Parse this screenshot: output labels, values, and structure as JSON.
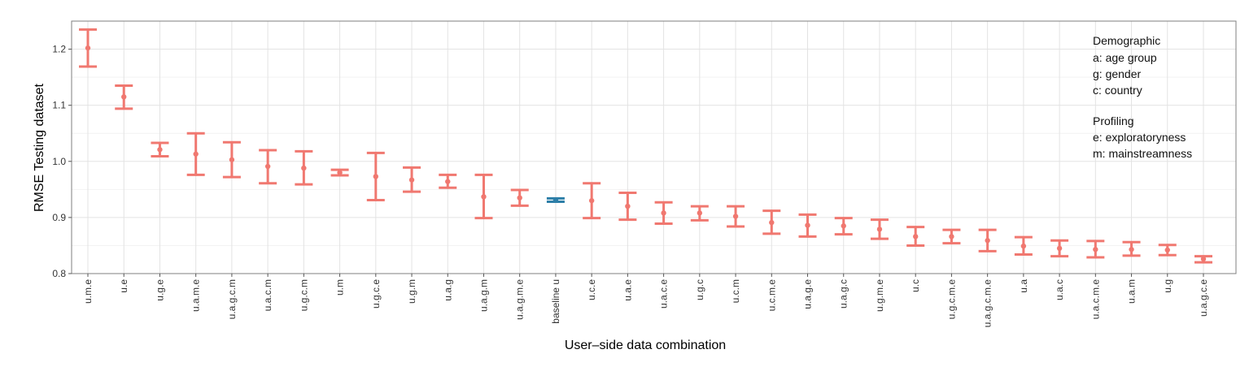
{
  "chart_data": {
    "type": "errorbar",
    "title": "",
    "xlabel": "User–side data combination",
    "ylabel": "RMSE Testing dataset",
    "ylim": [
      0.8,
      1.25
    ],
    "yticks": [
      0.8,
      0.9,
      1.0,
      1.1,
      1.2
    ],
    "ytick_labels": [
      "0.8",
      "0.9",
      "1.0",
      "1.1",
      "1.2"
    ],
    "grid": true,
    "colors": {
      "default": "#f07870",
      "baseline": "#2e7fa8"
    },
    "categories": [
      "u.m.e",
      "u.e",
      "u.g.e",
      "u.a.m.e",
      "u.a.g.c.m",
      "u.a.c.m",
      "u.g.c.m",
      "u.m",
      "u.g.c.e",
      "u.g.m",
      "u.a.g",
      "u.a.g.m",
      "u.a.g.m.e",
      "baseline u",
      "u.c.e",
      "u.a.e",
      "u.a.c.e",
      "u.g.c",
      "u.c.m",
      "u.c.m.e",
      "u.a.g.e",
      "u.a.g.c",
      "u.g.m.e",
      "u.c",
      "u.g.c.m.e",
      "u.a.g.c.m.e",
      "u.a",
      "u.a.c",
      "u.a.c.m.e",
      "u.a.m",
      "u.g",
      "u.a.g.c.e"
    ],
    "values": [
      1.202,
      1.115,
      1.021,
      1.013,
      1.003,
      0.991,
      0.988,
      0.98,
      0.973,
      0.967,
      0.964,
      0.937,
      0.935,
      0.931,
      0.93,
      0.92,
      0.908,
      0.908,
      0.902,
      0.891,
      0.886,
      0.885,
      0.879,
      0.866,
      0.866,
      0.859,
      0.849,
      0.845,
      0.843,
      0.843,
      0.842,
      0.826
    ],
    "lower": [
      1.169,
      1.094,
      1.009,
      0.976,
      0.972,
      0.961,
      0.959,
      0.975,
      0.931,
      0.946,
      0.953,
      0.899,
      0.921,
      0.928,
      0.899,
      0.896,
      0.889,
      0.895,
      0.884,
      0.871,
      0.866,
      0.87,
      0.862,
      0.85,
      0.854,
      0.84,
      0.834,
      0.831,
      0.829,
      0.832,
      0.833,
      0.82
    ],
    "upper": [
      1.235,
      1.135,
      1.033,
      1.05,
      1.034,
      1.02,
      1.018,
      0.985,
      1.015,
      0.989,
      0.976,
      0.976,
      0.949,
      0.934,
      0.961,
      0.944,
      0.927,
      0.92,
      0.92,
      0.912,
      0.905,
      0.899,
      0.896,
      0.883,
      0.878,
      0.878,
      0.865,
      0.859,
      0.858,
      0.856,
      0.851,
      0.831
    ],
    "highlight": "baseline u",
    "legend_position": "top-right"
  },
  "legend": {
    "groups": [
      {
        "heading": "Demographic",
        "items": [
          "a: age group",
          "g: gender",
          "c: country"
        ]
      },
      {
        "heading": "Profiling",
        "items": [
          "e: exploratoryness",
          "m: mainstreamness"
        ]
      }
    ]
  }
}
